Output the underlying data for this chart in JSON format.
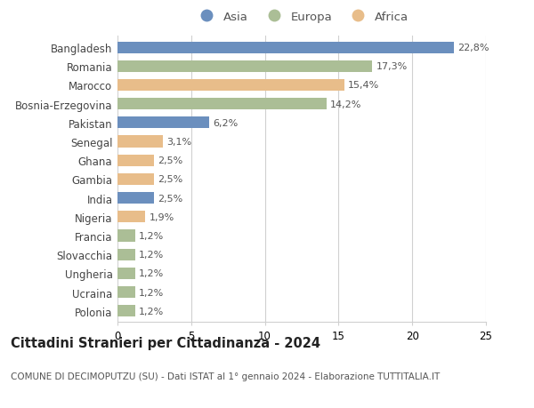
{
  "categories": [
    "Bangladesh",
    "Romania",
    "Marocco",
    "Bosnia-Erzegovina",
    "Pakistan",
    "Senegal",
    "Ghana",
    "Gambia",
    "India",
    "Nigeria",
    "Francia",
    "Slovacchia",
    "Ungheria",
    "Ucraina",
    "Polonia"
  ],
  "values": [
    22.8,
    17.3,
    15.4,
    14.2,
    6.2,
    3.1,
    2.5,
    2.5,
    2.5,
    1.9,
    1.2,
    1.2,
    1.2,
    1.2,
    1.2
  ],
  "labels": [
    "22,8%",
    "17,3%",
    "15,4%",
    "14,2%",
    "6,2%",
    "3,1%",
    "2,5%",
    "2,5%",
    "2,5%",
    "1,9%",
    "1,2%",
    "1,2%",
    "1,2%",
    "1,2%",
    "1,2%"
  ],
  "continents": [
    "Asia",
    "Europa",
    "Africa",
    "Europa",
    "Asia",
    "Africa",
    "Africa",
    "Africa",
    "Asia",
    "Africa",
    "Europa",
    "Europa",
    "Europa",
    "Europa",
    "Europa"
  ],
  "colors": {
    "Asia": "#6b8fbe",
    "Europa": "#abbe96",
    "Africa": "#e8bd8a"
  },
  "legend_labels": [
    "Asia",
    "Europa",
    "Africa"
  ],
  "title": "Cittadini Stranieri per Cittadinanza - 2024",
  "subtitle": "COMUNE DI DECIMOPUTZU (SU) - Dati ISTAT al 1° gennaio 2024 - Elaborazione TUTTITALIA.IT",
  "xlim": [
    0,
    25
  ],
  "xticks": [
    0,
    5,
    10,
    15,
    20,
    25
  ],
  "bg_color": "#ffffff",
  "bar_height": 0.62,
  "grid_color": "#d0d0d0",
  "label_fontsize": 8,
  "tick_fontsize": 8.5,
  "title_fontsize": 10.5,
  "subtitle_fontsize": 7.5
}
